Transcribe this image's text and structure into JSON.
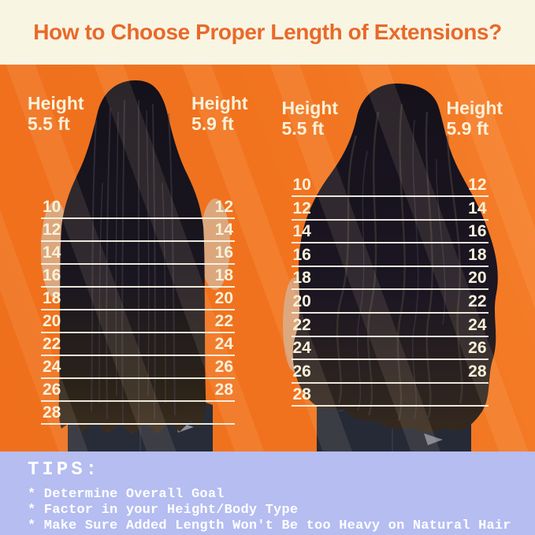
{
  "title": "How to Choose Proper Length of Extensions?",
  "colors": {
    "header_bg": "#f8f5e3",
    "title_orange": "#e9692a",
    "main_orange": "#f1731e",
    "label_cream": "#f8f1da",
    "line_white": "#faf6eb",
    "tips_bg": "#b5bdf1",
    "tips_text": "#ffffff"
  },
  "panels": [
    {
      "id": "straight-hair",
      "hair_style": "straight",
      "height_left": {
        "label": "Height",
        "value": "5.5 ft"
      },
      "height_right": {
        "label": "Height",
        "value": "5.9 ft"
      },
      "rows": [
        {
          "left": "10",
          "right": "12"
        },
        {
          "left": "12",
          "right": "14"
        },
        {
          "left": "14",
          "right": "16"
        },
        {
          "left": "16",
          "right": "18"
        },
        {
          "left": "18",
          "right": "20"
        },
        {
          "left": "20",
          "right": "22"
        },
        {
          "left": "22",
          "right": "24"
        },
        {
          "left": "24",
          "right": "26"
        },
        {
          "left": "26",
          "right": "28"
        },
        {
          "left": "28",
          "right": ""
        }
      ]
    },
    {
      "id": "wavy-hair",
      "hair_style": "wavy",
      "height_left": {
        "label": "Height",
        "value": "5.5 ft"
      },
      "height_right": {
        "label": "Height",
        "value": "5.9 ft"
      },
      "rows": [
        {
          "left": "10",
          "right": "12"
        },
        {
          "left": "12",
          "right": "14"
        },
        {
          "left": "14",
          "right": "16"
        },
        {
          "left": "16",
          "right": "18"
        },
        {
          "left": "18",
          "right": "20"
        },
        {
          "left": "20",
          "right": "22"
        },
        {
          "left": "22",
          "right": "24"
        },
        {
          "left": "24",
          "right": "26"
        },
        {
          "left": "26",
          "right": "28"
        },
        {
          "left": "28",
          "right": ""
        }
      ]
    }
  ],
  "tips": {
    "heading": "TIPS:",
    "items": [
      "* Determine Overall Goal",
      "* Factor in your Height/Body Type",
      "* Make Sure Added Length Won't Be too Heavy on Natural Hair"
    ]
  }
}
